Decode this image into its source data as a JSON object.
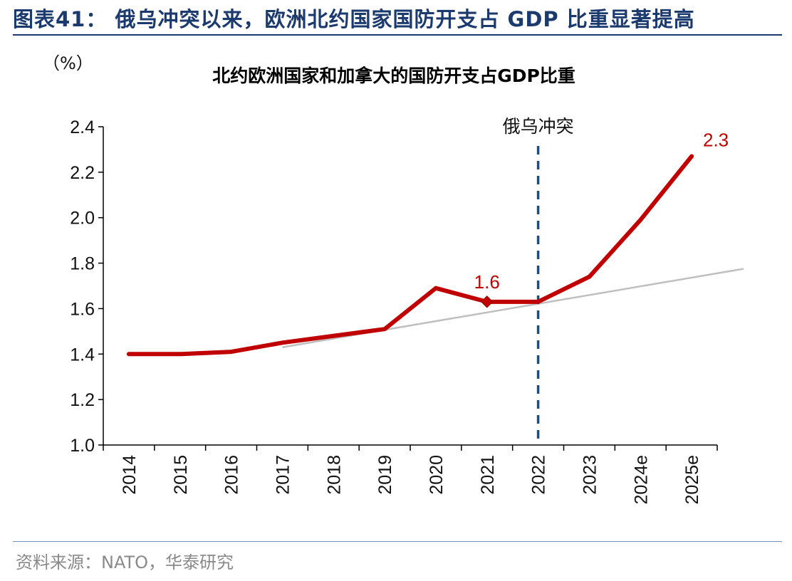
{
  "figure_title": "图表41： 俄乌冲突以来，欧洲北约国家国防开支占 GDP 比重显著提高",
  "source": "资料来源：NATO，华泰研究",
  "chart_data": {
    "type": "line",
    "title": "北约欧洲国家和加拿大的国防开支占GDP比重",
    "unit_label": "（%）",
    "categories": [
      "2014",
      "2015",
      "2016",
      "2017",
      "2018",
      "2019",
      "2020",
      "2021",
      "2022",
      "2023",
      "2024e",
      "2025e"
    ],
    "series": [
      {
        "values": [
          1.4,
          1.4,
          1.41,
          1.45,
          1.48,
          1.51,
          1.69,
          1.63,
          1.63,
          1.74,
          1.99,
          2.27
        ],
        "color": "#c00000"
      }
    ],
    "trendline": {
      "start_category": "2017",
      "start": 1.43,
      "end": 1.775,
      "color": "#bfbfbf"
    },
    "ylim": [
      1.0,
      2.4
    ],
    "yticks": [
      "1.0",
      "1.2",
      "1.4",
      "1.6",
      "1.8",
      "2.0",
      "2.2",
      "2.4"
    ],
    "event": {
      "label": "俄乌冲突",
      "category": "2022",
      "color": "#1f4e79"
    },
    "data_labels": [
      {
        "category": "2021",
        "text": "1.6",
        "marker": "diamond"
      },
      {
        "category": "2025e",
        "text": "2.3"
      }
    ],
    "grid": false
  }
}
